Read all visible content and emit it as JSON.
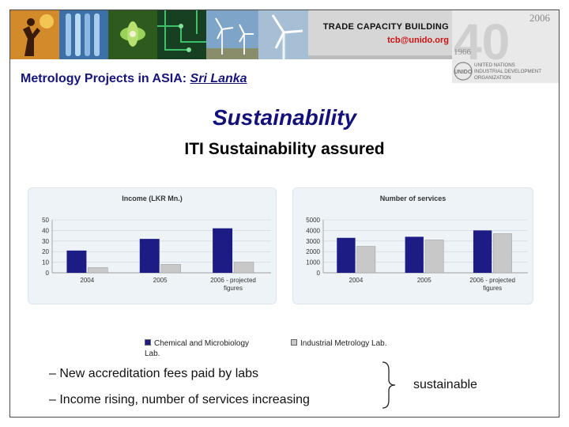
{
  "header": {
    "tcb_title": "TRADE CAPACITY BUILDING",
    "tcb_email": "tcb@unido.org",
    "logo_year_top": "2006",
    "logo_big": "40",
    "logo_year_bottom": "1966",
    "logo_abbrev": "UNIDO",
    "org_name_lines": [
      "UNITED NATIONS",
      "INDUSTRIAL DEVELOPMENT",
      "ORGANIZATION"
    ]
  },
  "slide": {
    "subtitle_prefix": "Metrology Projects in ASIA: ",
    "subtitle_country": "Sri Lanka",
    "title": "Sustainability",
    "subheading": "ITI Sustainability assured"
  },
  "legend": {
    "series1_line1": "Chemical and Microbiology",
    "series1_line2": "Lab.",
    "series2": "Industrial Metrology Lab."
  },
  "bullets": [
    "– New accreditation fees paid by labs",
    "– Income rising, number of services increasing"
  ],
  "conclusion": "sustainable",
  "colors": {
    "series1": "#1c1c84",
    "series2": "#c8c8c8",
    "title_blue": "#14127a",
    "email_red": "#cc1111"
  },
  "chart_data": [
    {
      "type": "bar",
      "title": "Income (LKR Mn.)",
      "categories": [
        "2004",
        "2005",
        "2006 - projected figures"
      ],
      "category_lines": [
        [
          "2004"
        ],
        [
          "2005"
        ],
        [
          "2006 - projected",
          "figures"
        ]
      ],
      "series": [
        {
          "name": "Chemical and Microbiology Lab.",
          "values": [
            21,
            32,
            42
          ]
        },
        {
          "name": "Industrial Metrology Lab.",
          "values": [
            5,
            8,
            10
          ]
        }
      ],
      "ylim": [
        0,
        50
      ],
      "yticks": [
        0,
        10,
        20,
        30,
        40,
        50
      ],
      "grid": true
    },
    {
      "type": "bar",
      "title": "Number of services",
      "categories": [
        "2004",
        "2005",
        "2006 - projected figures"
      ],
      "category_lines": [
        [
          "2004"
        ],
        [
          "2005"
        ],
        [
          "2006 - projected",
          "figures"
        ]
      ],
      "series": [
        {
          "name": "Chemical and Microbiology Lab.",
          "values": [
            3300,
            3400,
            4000
          ]
        },
        {
          "name": "Industrial Metrology Lab.",
          "values": [
            2500,
            3100,
            3700
          ]
        }
      ],
      "ylim": [
        0,
        5000
      ],
      "yticks": [
        0,
        1000,
        2000,
        3000,
        4000,
        5000
      ],
      "grid": true
    }
  ]
}
